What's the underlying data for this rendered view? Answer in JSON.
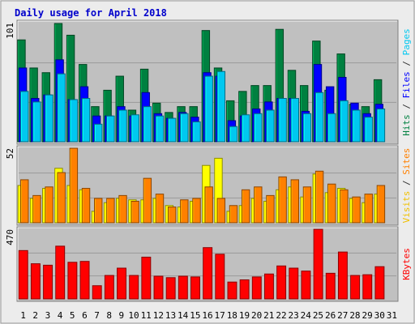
{
  "chart_data": {
    "type": "bar",
    "title": "Daily usage for April 2018",
    "days": [
      "1",
      "2",
      "3",
      "4",
      "5",
      "6",
      "7",
      "8",
      "9",
      "10",
      "11",
      "12",
      "13",
      "14",
      "15",
      "16",
      "17",
      "18",
      "19",
      "20",
      "21",
      "22",
      "23",
      "24",
      "25",
      "26",
      "27",
      "28",
      "29",
      "30",
      "31"
    ],
    "weekend_days": [
      "1",
      "7",
      "8",
      "14",
      "15",
      "21",
      "22",
      "28",
      "29"
    ],
    "panels": [
      {
        "id": "hits-files-pages",
        "ymax": 101,
        "ymax_label": "101",
        "right_label_parts": [
          {
            "text": "Hits",
            "color": "#008040"
          },
          {
            "text": " / ",
            "color": "#333333"
          },
          {
            "text": "Files",
            "color": "#0000ff"
          },
          {
            "text": " / ",
            "color": "#333333"
          },
          {
            "text": "Pages",
            "color": "#00c8f0"
          }
        ],
        "series": [
          {
            "name": "Hits",
            "color": "#008040",
            "values": [
              87,
              63,
              59,
              101,
              91,
              66,
              30,
              44,
              56,
              27,
              62,
              33,
              25,
              30,
              30,
              95,
              63,
              35,
              43,
              48,
              48,
              96,
              61,
              48,
              86,
              44,
              75,
              32,
              30,
              53
            ]
          },
          {
            "name": "Files",
            "color": "#0000ff",
            "values": [
              63,
              37,
              40,
              70,
              36,
              47,
              22,
              22,
              30,
              22,
              42,
              24,
              20,
              25,
              21,
              59,
              56,
              18,
              22,
              28,
              34,
              37,
              37,
              26,
              66,
              47,
              55,
              33,
              24,
              32
            ]
          },
          {
            "name": "Pages",
            "color": "#00c8f0",
            "values": [
              43,
              34,
              40,
              58,
              36,
              37,
              15,
              22,
              27,
              23,
              30,
              22,
              20,
              24,
              17,
              56,
              60,
              13,
              23,
              24,
              27,
              37,
              37,
              24,
              42,
              24,
              35,
              27,
              21,
              28
            ]
          }
        ]
      },
      {
        "id": "visits-sites",
        "ymax": 52,
        "ymax_label": "52",
        "right_label_parts": [
          {
            "text": "Visits",
            "color": "#f0c000"
          },
          {
            "text": " / ",
            "color": "#333333"
          },
          {
            "text": "Sites",
            "color": "#ff8000"
          }
        ],
        "series": [
          {
            "name": "Visits",
            "color": "#ffff00",
            "values": [
              26,
              17,
              24,
              38,
              26,
              23,
              8,
              14,
              17,
              16,
              16,
              17,
              12,
              11,
              15,
              40,
              45,
              8,
              12,
              17,
              15,
              23,
              25,
              18,
              34,
              21,
              24,
              17,
              14,
              20
            ]
          },
          {
            "name": "Sites",
            "color": "#ff8000",
            "values": [
              30,
              19,
              25,
              35,
              52,
              24,
              17,
              17,
              19,
              15,
              31,
              20,
              11,
              16,
              17,
              25,
              17,
              12,
              23,
              25,
              19,
              32,
              30,
              25,
              36,
              27,
              23,
              18,
              20,
              26
            ]
          }
        ]
      },
      {
        "id": "kbytes",
        "ymax": 470,
        "ymax_label": "470",
        "right_label_parts": [
          {
            "text": "KBytes",
            "color": "#ff0000"
          }
        ],
        "series": [
          {
            "name": "KBytes",
            "color": "#ff0000",
            "values": [
              330,
              240,
              230,
              360,
              250,
              256,
              90,
              160,
              210,
              160,
              285,
              155,
              145,
              155,
              150,
              350,
              305,
              115,
              130,
              150,
              170,
              225,
              210,
              190,
              475,
              175,
              320,
              160,
              165,
              220
            ]
          }
        ]
      }
    ]
  }
}
